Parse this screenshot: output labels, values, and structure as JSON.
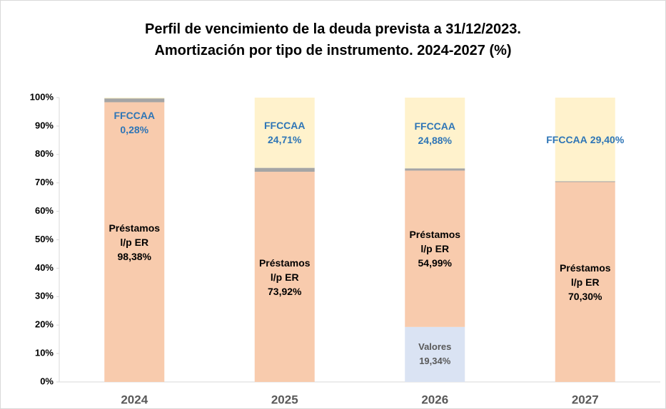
{
  "chart_data": {
    "type": "stacked_bar",
    "title": "Perfil de vencimiento de la deuda prevista a 31/12/2023.",
    "subtitle": "Amortización por tipo de instrumento. 2024-2027 (%)",
    "categories": [
      "2024",
      "2025",
      "2026",
      "2027"
    ],
    "series": [
      {
        "name": "Valores",
        "color": "#dae3f3",
        "label_color": "#595959",
        "values": [
          0,
          0,
          19.34,
          0
        ],
        "value_labels": [
          null,
          null,
          "19,34%",
          null
        ]
      },
      {
        "name": "Préstamos l/p ER",
        "color": "#f8cbad",
        "label_color": "#000000",
        "values": [
          98.38,
          73.92,
          54.99,
          70.3
        ],
        "value_labels": [
          "98,38%",
          "73,92%",
          "54,99%",
          "70,30%"
        ]
      },
      {
        "color": "#a5a5a5",
        "values": [
          1.34,
          1.37,
          0.79,
          0.3
        ]
      },
      {
        "name": "FFCCAA",
        "color": "#fff2cc",
        "label_color": "#2e75b6",
        "values": [
          0.28,
          24.71,
          24.88,
          29.4
        ],
        "value_labels": [
          "0,28%",
          "24,71%",
          "24,88%",
          "29,40%"
        ]
      }
    ],
    "ylim": [
      0,
      100
    ],
    "yticks": [
      {
        "value": 0,
        "label": "0%"
      },
      {
        "value": 10,
        "label": "10%"
      },
      {
        "value": 20,
        "label": "20%"
      },
      {
        "value": 30,
        "label": "30%"
      },
      {
        "value": 40,
        "label": "40%"
      },
      {
        "value": 50,
        "label": "50%"
      },
      {
        "value": 60,
        "label": "60%"
      },
      {
        "value": 70,
        "label": "70%"
      },
      {
        "value": 80,
        "label": "80%"
      },
      {
        "value": 90,
        "label": "90%"
      },
      {
        "value": 100,
        "label": "100%"
      }
    ],
    "grid": false
  }
}
